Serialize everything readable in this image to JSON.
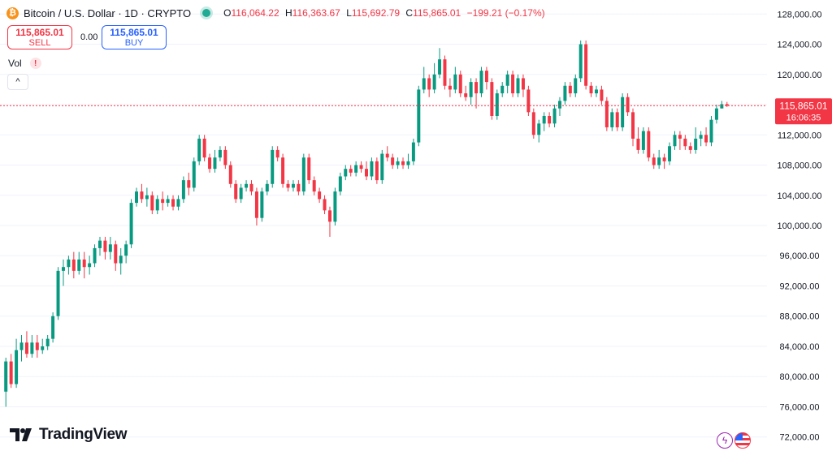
{
  "header": {
    "coin_glyph": "₿",
    "symbol": "Bitcoin / U.S. Dollar · 1D · CRYPTO",
    "ohlc": {
      "o_label": "O",
      "o": "116,064.22",
      "h_label": "H",
      "h": "116,363.67",
      "l_label": "L",
      "l": "115,692.79",
      "c_label": "C",
      "c": "115,865.01",
      "change": "−199.21 (−0.17%)"
    }
  },
  "trade": {
    "sell_price": "115,865.01",
    "sell_label": "SELL",
    "spread": "0.00",
    "buy_price": "115,865.01",
    "buy_label": "BUY"
  },
  "indicator": {
    "vol_label": "Vol",
    "warn_glyph": "!",
    "collapse_glyph": "^"
  },
  "brand": {
    "name": "TradingView"
  },
  "badges": {
    "bolt_glyph": "ϟ"
  },
  "colors": {
    "up": "#089981",
    "down": "#f23645",
    "grid": "#f0f3fa",
    "price_line": "#f23645"
  },
  "chart_data": {
    "type": "candlestick",
    "y_ticks": [
      "72,000.00",
      "76,000.00",
      "80,000.00",
      "84,000.00",
      "88,000.00",
      "92,000.00",
      "96,000.00",
      "100,000.00",
      "104,000.00",
      "108,000.00",
      "112,000.00",
      "116,000.00",
      "120,000.00",
      "124,000.00",
      "128,000.00"
    ],
    "ylim": [
      71000,
      129000
    ],
    "last_price": 115865.01,
    "last_price_label": "115,865.01",
    "countdown": "16:06:35",
    "candles": [
      [
        78000,
        82000,
        76000,
        82500
      ],
      [
        82000,
        79000,
        78500,
        83000
      ],
      [
        79000,
        83500,
        78500,
        85000
      ],
      [
        83500,
        84500,
        82000,
        85500
      ],
      [
        84500,
        83000,
        82500,
        86000
      ],
      [
        83000,
        84500,
        82500,
        85500
      ],
      [
        84500,
        83500,
        82500,
        85500
      ],
      [
        83500,
        84000,
        83000,
        85000
      ],
      [
        84000,
        85000,
        83500,
        85500
      ],
      [
        85000,
        88000,
        84500,
        88500
      ],
      [
        88000,
        94000,
        87500,
        94500
      ],
      [
        94000,
        94500,
        92000,
        95500
      ],
      [
        94500,
        95500,
        93500,
        96000
      ],
      [
        95500,
        94000,
        93000,
        96500
      ],
      [
        94000,
        95500,
        93500,
        96500
      ],
      [
        95500,
        94500,
        93000,
        96500
      ],
      [
        94500,
        95000,
        93500,
        96000
      ],
      [
        95000,
        97000,
        94500,
        97500
      ],
      [
        97000,
        98000,
        96000,
        98500
      ],
      [
        98000,
        96500,
        95500,
        98500
      ],
      [
        96500,
        97500,
        95500,
        98500
      ],
      [
        97500,
        95000,
        94000,
        98000
      ],
      [
        95000,
        96000,
        93500,
        97000
      ],
      [
        96000,
        97500,
        95000,
        98000
      ],
      [
        97500,
        103000,
        97000,
        103500
      ],
      [
        103000,
        104500,
        102500,
        105000
      ],
      [
        104500,
        103500,
        103000,
        105500
      ],
      [
        103500,
        104000,
        102500,
        105000
      ],
      [
        104000,
        102000,
        101500,
        104500
      ],
      [
        102000,
        103500,
        101500,
        104000
      ],
      [
        103500,
        103000,
        102000,
        104500
      ],
      [
        103000,
        103500,
        102500,
        104000
      ],
      [
        103500,
        102500,
        102000,
        104000
      ],
      [
        102500,
        103500,
        102000,
        104000
      ],
      [
        103500,
        106000,
        103000,
        106500
      ],
      [
        106000,
        105000,
        104000,
        107000
      ],
      [
        105000,
        108500,
        104500,
        109000
      ],
      [
        108500,
        111500,
        108000,
        112000
      ],
      [
        111500,
        109000,
        108500,
        112000
      ],
      [
        109000,
        107500,
        107000,
        109500
      ],
      [
        107500,
        109000,
        107000,
        110000
      ],
      [
        109000,
        110000,
        108500,
        110500
      ],
      [
        110000,
        108000,
        107500,
        110500
      ],
      [
        108000,
        105500,
        105000,
        108500
      ],
      [
        105500,
        103500,
        103000,
        106000
      ],
      [
        103500,
        105000,
        103000,
        105500
      ],
      [
        105000,
        105500,
        104500,
        106000
      ],
      [
        105500,
        104500,
        104000,
        106000
      ],
      [
        104500,
        101000,
        100000,
        105000
      ],
      [
        101000,
        104500,
        100500,
        105000
      ],
      [
        104500,
        105500,
        104000,
        106000
      ],
      [
        105500,
        110000,
        105000,
        110500
      ],
      [
        110000,
        109000,
        108500,
        110500
      ],
      [
        109000,
        105500,
        105000,
        109500
      ],
      [
        105500,
        105000,
        104500,
        106000
      ],
      [
        105000,
        105500,
        104500,
        106000
      ],
      [
        105500,
        104500,
        104000,
        106000
      ],
      [
        104500,
        109000,
        104000,
        109500
      ],
      [
        109000,
        106000,
        105500,
        109500
      ],
      [
        106000,
        104500,
        104000,
        106500
      ],
      [
        104500,
        103500,
        103000,
        105000
      ],
      [
        103500,
        102000,
        101500,
        104000
      ],
      [
        102000,
        100500,
        98500,
        102500
      ],
      [
        100500,
        104500,
        100000,
        105000
      ],
      [
        104500,
        106500,
        104000,
        107000
      ],
      [
        106500,
        107500,
        106000,
        108000
      ],
      [
        107500,
        107000,
        106500,
        108000
      ],
      [
        107000,
        108000,
        106500,
        108500
      ],
      [
        108000,
        107500,
        107000,
        108500
      ],
      [
        107500,
        106500,
        106000,
        108500
      ],
      [
        106500,
        108500,
        106000,
        109000
      ],
      [
        108500,
        106000,
        105500,
        109000
      ],
      [
        106000,
        109500,
        105500,
        110000
      ],
      [
        109500,
        109000,
        108500,
        110500
      ],
      [
        109000,
        108000,
        107500,
        109500
      ],
      [
        108000,
        108500,
        107500,
        109000
      ],
      [
        108500,
        108000,
        107500,
        109000
      ],
      [
        108000,
        108500,
        107500,
        109500
      ],
      [
        108500,
        111000,
        108000,
        111500
      ],
      [
        111000,
        118000,
        110500,
        118500
      ],
      [
        118000,
        119500,
        117500,
        121000
      ],
      [
        119500,
        118000,
        117000,
        120000
      ],
      [
        118000,
        120000,
        117500,
        121500
      ],
      [
        120000,
        122000,
        119500,
        123500
      ],
      [
        122000,
        118500,
        118000,
        122500
      ],
      [
        118500,
        118000,
        117000,
        119500
      ],
      [
        118000,
        120000,
        117500,
        121000
      ],
      [
        120000,
        117500,
        117000,
        120500
      ],
      [
        117500,
        117000,
        116500,
        118500
      ],
      [
        117000,
        119000,
        116000,
        119500
      ],
      [
        119000,
        117500,
        115500,
        119500
      ],
      [
        117500,
        120500,
        117000,
        121000
      ],
      [
        120500,
        119000,
        118000,
        121000
      ],
      [
        119000,
        114500,
        114000,
        119500
      ],
      [
        114500,
        117500,
        114000,
        118000
      ],
      [
        117500,
        118500,
        117000,
        119000
      ],
      [
        118500,
        120000,
        117500,
        120500
      ],
      [
        120000,
        117500,
        117000,
        120500
      ],
      [
        117500,
        119500,
        117000,
        120000
      ],
      [
        119500,
        118000,
        117000,
        120000
      ],
      [
        118000,
        115000,
        114500,
        118500
      ],
      [
        115000,
        112000,
        111500,
        115500
      ],
      [
        112000,
        113500,
        111000,
        114000
      ],
      [
        113500,
        114500,
        112500,
        115000
      ],
      [
        114500,
        113500,
        113000,
        115000
      ],
      [
        113500,
        115500,
        113000,
        116000
      ],
      [
        115500,
        116500,
        114500,
        117000
      ],
      [
        116500,
        118500,
        116000,
        119000
      ],
      [
        118500,
        117500,
        117000,
        119000
      ],
      [
        117500,
        119500,
        117000,
        120000
      ],
      [
        119500,
        124000,
        119000,
        124500
      ],
      [
        124000,
        118500,
        118000,
        124500
      ],
      [
        118500,
        117500,
        117000,
        119000
      ],
      [
        117500,
        118000,
        117000,
        118500
      ],
      [
        118000,
        116500,
        116000,
        118500
      ],
      [
        116500,
        113000,
        112500,
        117000
      ],
      [
        113000,
        115000,
        112500,
        115500
      ],
      [
        115000,
        113000,
        112500,
        115500
      ],
      [
        113000,
        117000,
        112500,
        117500
      ],
      [
        117000,
        115000,
        114500,
        117500
      ],
      [
        115000,
        111500,
        110500,
        115500
      ],
      [
        111500,
        110000,
        109500,
        113000
      ],
      [
        110000,
        112500,
        109500,
        113000
      ],
      [
        112500,
        109000,
        108500,
        113000
      ],
      [
        109000,
        108000,
        107500,
        109500
      ],
      [
        108000,
        109000,
        107500,
        110000
      ],
      [
        109000,
        108500,
        107500,
        109500
      ],
      [
        108500,
        110500,
        108000,
        111000
      ],
      [
        110500,
        112000,
        110000,
        112500
      ],
      [
        112000,
        111500,
        110000,
        112500
      ],
      [
        111500,
        110500,
        110000,
        112000
      ],
      [
        110500,
        110000,
        109500,
        111000
      ],
      [
        110000,
        111500,
        109500,
        113000
      ],
      [
        111500,
        112000,
        110500,
        112500
      ],
      [
        112000,
        111000,
        110500,
        113000
      ],
      [
        111000,
        114000,
        110500,
        114500
      ],
      [
        114000,
        115500,
        113500,
        116000
      ],
      [
        115500,
        116064.22,
        115500,
        116500
      ],
      [
        116064.22,
        115865.01,
        115692.79,
        116363.67
      ]
    ]
  }
}
